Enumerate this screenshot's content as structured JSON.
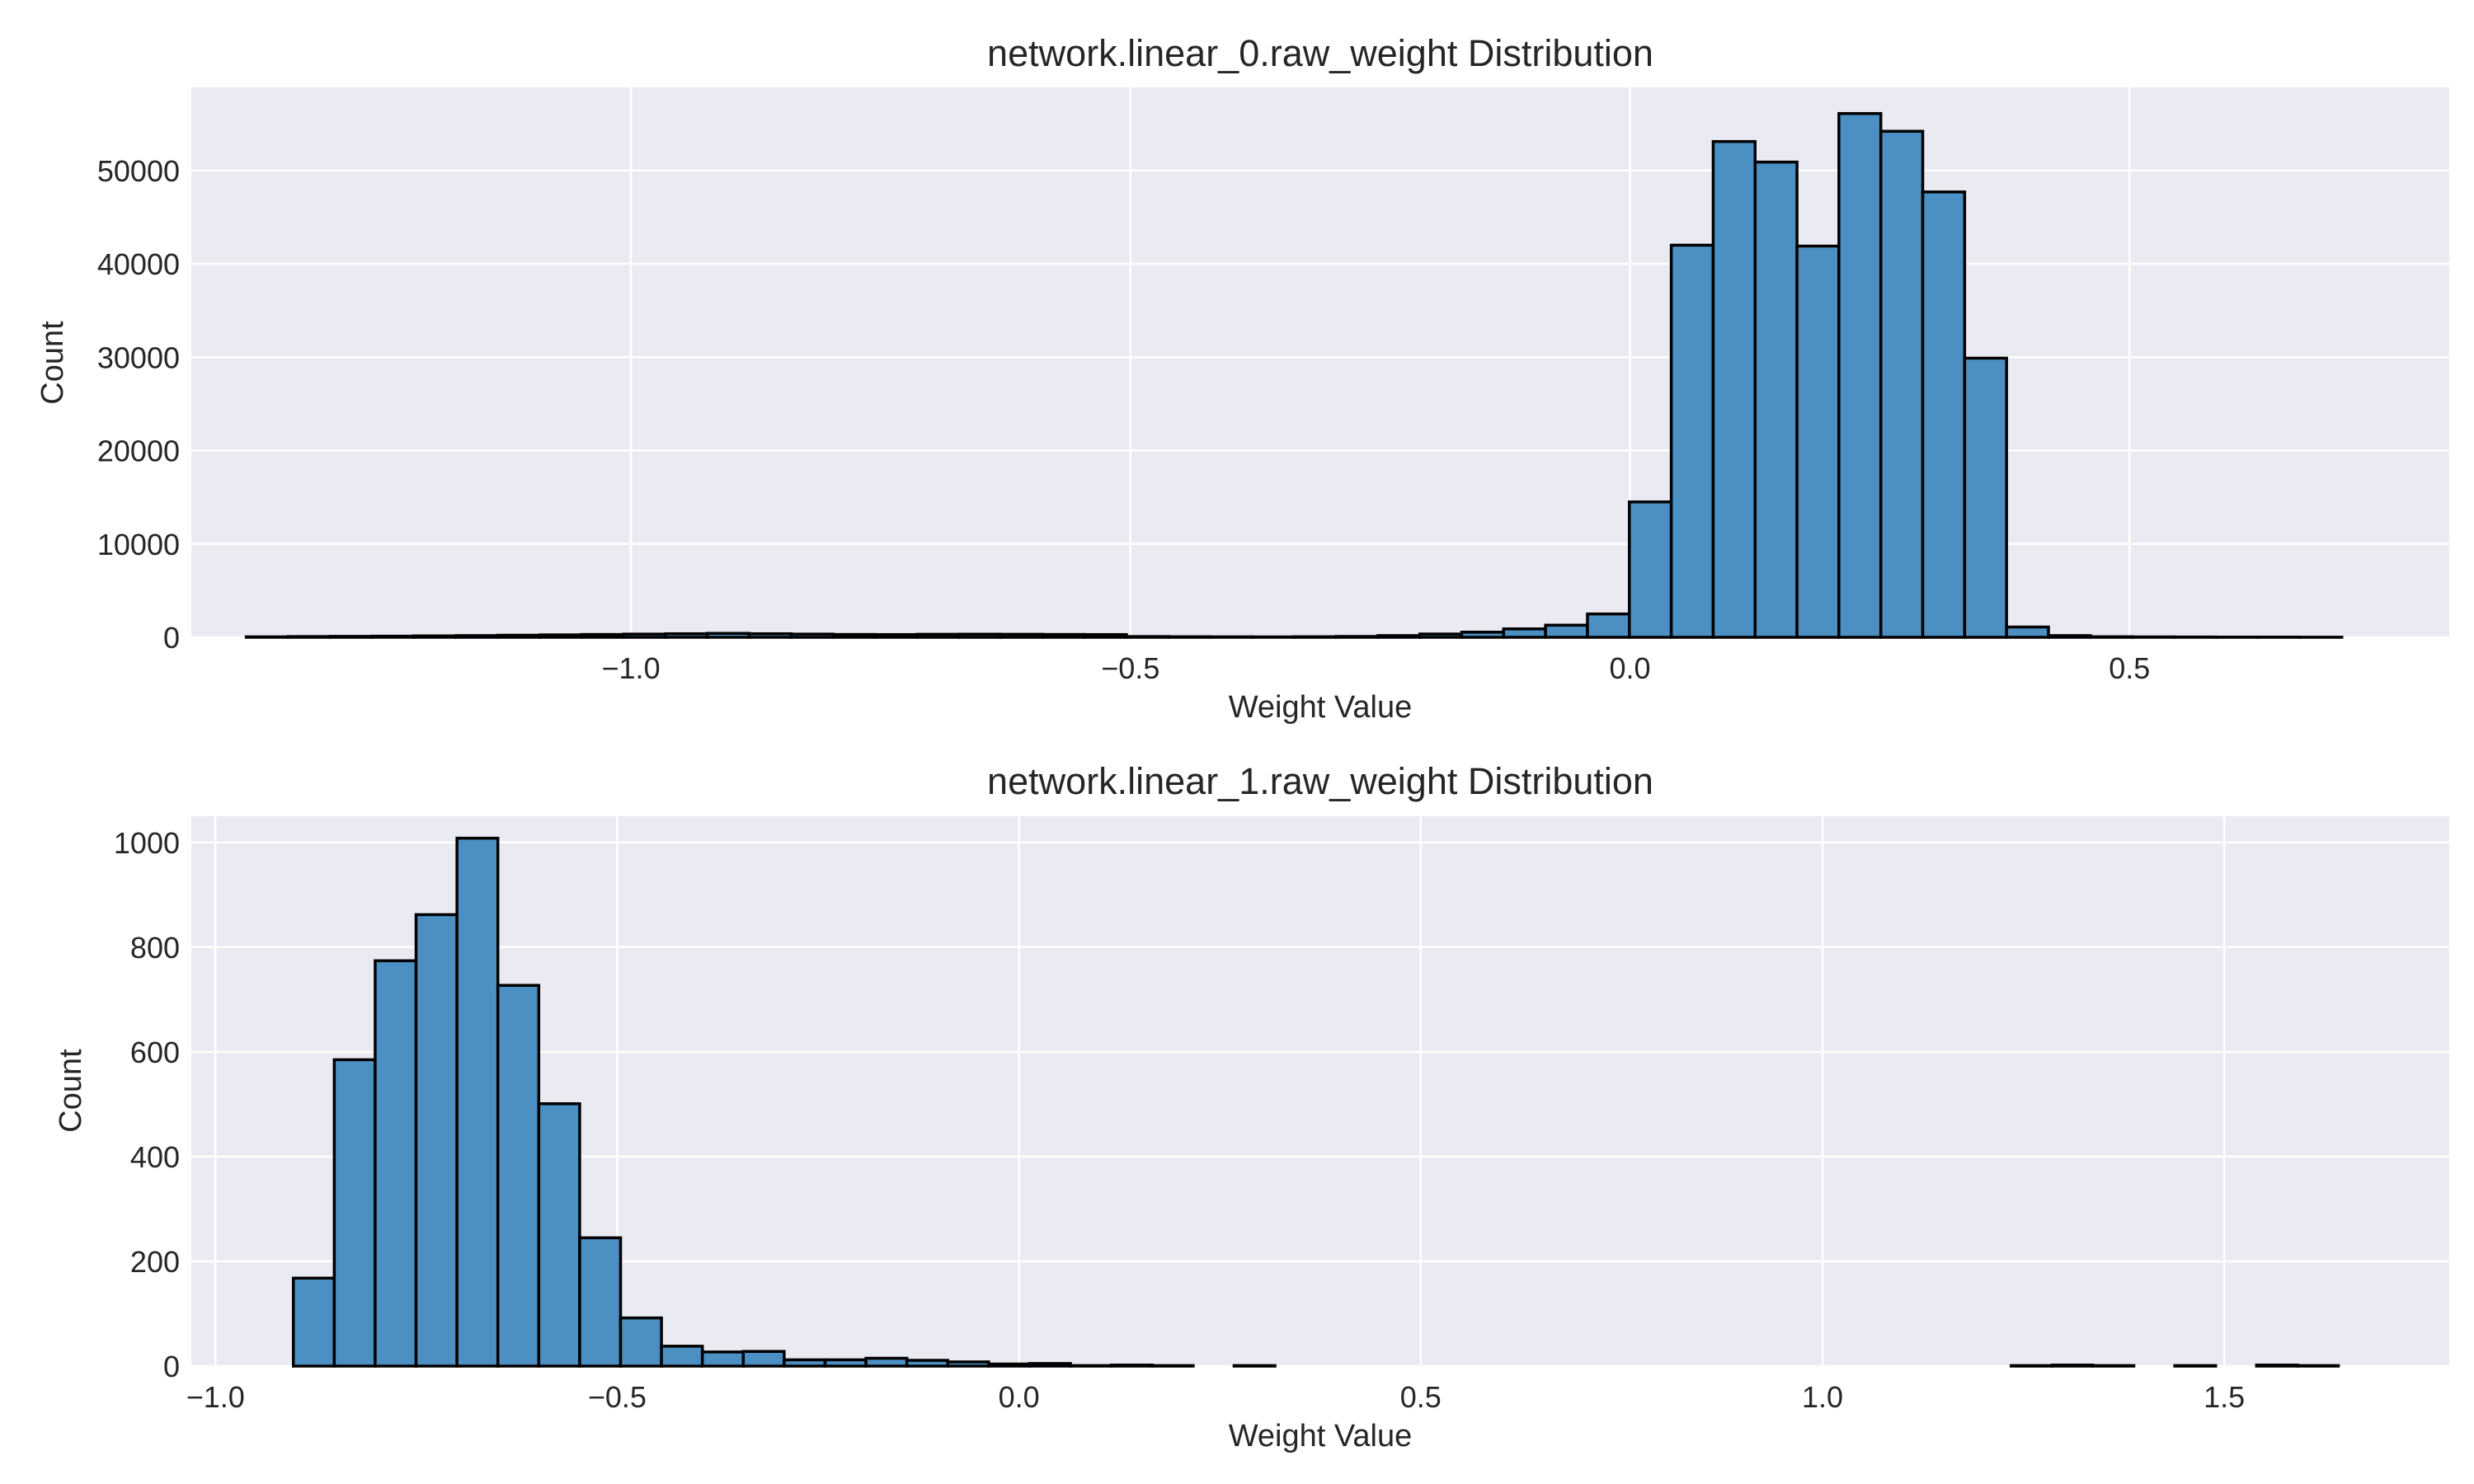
{
  "chart_data": [
    {
      "type": "bar",
      "title": "network.linear_0.raw_weight Distribution",
      "xlabel": "Weight Value",
      "ylabel": "Count",
      "xlim": [
        -1.44,
        0.82
      ],
      "ylim": [
        0,
        58900
      ],
      "grid": true,
      "legend": "none",
      "xticks": [
        -1.0,
        -0.5,
        0.0,
        0.5
      ],
      "xtick_labels": [
        "−1.0",
        "−0.5",
        "0.0",
        "0.5"
      ],
      "yticks": [
        0,
        10000,
        20000,
        30000,
        40000,
        50000
      ],
      "ytick_labels": [
        "0",
        "10000",
        "20000",
        "30000",
        "40000",
        "50000"
      ],
      "bin_start": -1.385,
      "bin_width": 0.04195,
      "values": [
        50,
        80,
        100,
        120,
        150,
        180,
        220,
        260,
        300,
        340,
        380,
        420,
        380,
        340,
        300,
        290,
        320,
        330,
        320,
        300,
        290,
        80,
        60,
        50,
        40,
        60,
        90,
        180,
        350,
        550,
        900,
        1300,
        2500,
        14500,
        42000,
        53100,
        50900,
        41900,
        56100,
        54200,
        47700,
        29900,
        1100,
        180,
        60,
        40,
        30,
        20,
        20,
        10
      ]
    },
    {
      "type": "bar",
      "title": "network.linear_1.raw_weight Distribution",
      "xlabel": "Weight Value",
      "ylabel": "Count",
      "xlim": [
        -1.03,
        1.78
      ],
      "ylim": [
        0,
        1050
      ],
      "grid": true,
      "legend": "none",
      "xticks": [
        -1.0,
        -0.5,
        0.0,
        0.5,
        1.0,
        1.5
      ],
      "xtick_labels": [
        "−1.0",
        "−0.5",
        "0.0",
        "0.5",
        "1.0",
        "1.5"
      ],
      "yticks": [
        0,
        200,
        400,
        600,
        800,
        1000
      ],
      "ytick_labels": [
        "0",
        "200",
        "400",
        "600",
        "800",
        "1000"
      ],
      "bin_start": -0.903,
      "bin_width": 0.0509,
      "values": [
        168,
        585,
        774,
        862,
        1008,
        727,
        501,
        245,
        92,
        38,
        27,
        28,
        12,
        12,
        15,
        11,
        8,
        4,
        5,
        1,
        2,
        1,
        0,
        1,
        0,
        0,
        0,
        0,
        0,
        0,
        0,
        0,
        0,
        0,
        0,
        0,
        0,
        0,
        0,
        0,
        0,
        0,
        1,
        2,
        1,
        0,
        1,
        0,
        2,
        1
      ]
    }
  ]
}
